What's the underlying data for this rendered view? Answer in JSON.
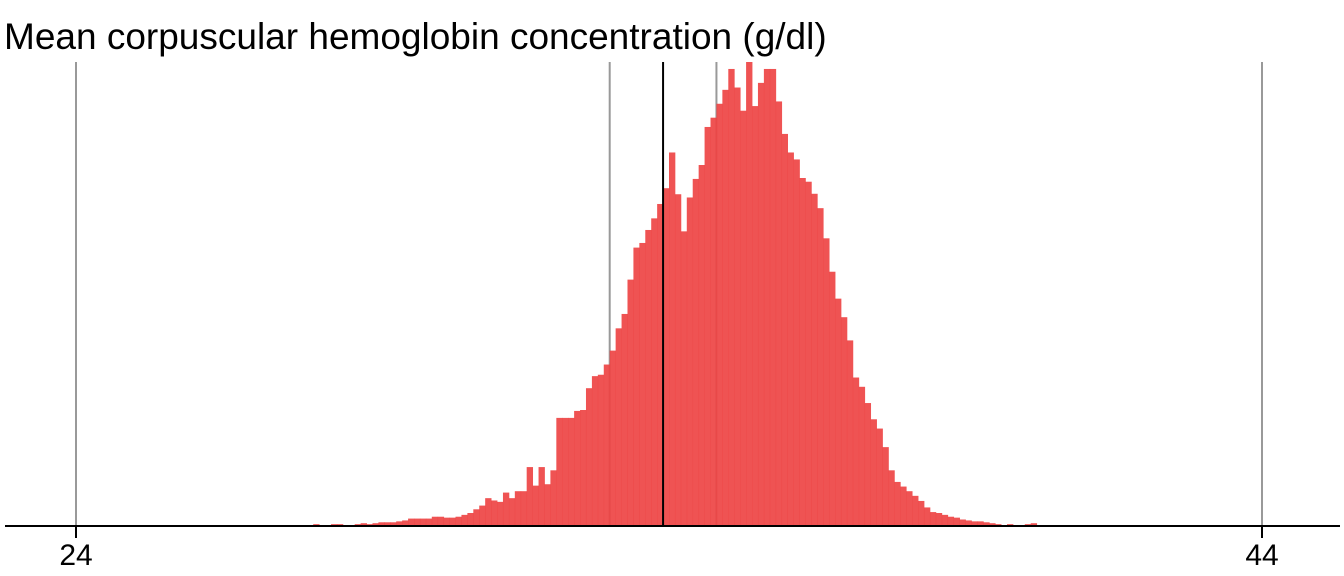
{
  "chart_data": {
    "type": "bar",
    "title": "Mean corpuscular hemoglobin concentration (g/dl)",
    "xlabel": "",
    "ylabel": "",
    "xlim": [
      24,
      44
    ],
    "x_ticks": [
      24,
      44
    ],
    "x_tick_labels": [
      "24",
      "44"
    ],
    "bin_width": 0.1,
    "vertical_reference_lines": [
      24,
      33,
      34.8,
      44
    ],
    "mean_line": 33.9,
    "colors": {
      "bars": "#ee4444",
      "reference_lines": "#999999",
      "mean_line": "#000000",
      "axis": "#000000"
    },
    "bins_start": 28.0,
    "counts_relative": [
      0.004,
      0.0,
      0.0,
      0.004,
      0.004,
      0.0,
      0.0,
      0.004,
      0.006,
      0.004,
      0.006,
      0.008,
      0.008,
      0.008,
      0.01,
      0.012,
      0.016,
      0.016,
      0.016,
      0.016,
      0.02,
      0.02,
      0.018,
      0.018,
      0.02,
      0.024,
      0.028,
      0.036,
      0.044,
      0.06,
      0.055,
      0.052,
      0.072,
      0.06,
      0.075,
      0.075,
      0.127,
      0.087,
      0.127,
      0.09,
      0.12,
      0.233,
      0.233,
      0.233,
      0.248,
      0.25,
      0.297,
      0.323,
      0.326,
      0.348,
      0.378,
      0.426,
      0.457,
      0.531,
      0.6,
      0.61,
      0.638,
      0.663,
      0.694,
      0.728,
      0.805,
      0.715,
      0.635,
      0.708,
      0.748,
      0.778,
      0.86,
      0.88,
      0.91,
      0.94,
      0.985,
      0.945,
      0.895,
      1.0,
      0.905,
      0.955,
      0.985,
      0.985,
      0.915,
      0.845,
      0.805,
      0.79,
      0.75,
      0.742,
      0.716,
      0.685,
      0.62,
      0.548,
      0.49,
      0.45,
      0.4,
      0.32,
      0.3,
      0.265,
      0.23,
      0.21,
      0.17,
      0.12,
      0.095,
      0.085,
      0.075,
      0.065,
      0.054,
      0.04,
      0.03,
      0.028,
      0.024,
      0.02,
      0.018,
      0.014,
      0.012,
      0.01,
      0.01,
      0.008,
      0.006,
      0.004,
      0.0,
      0.004,
      0.0,
      0.0,
      0.004,
      0.006
    ]
  }
}
